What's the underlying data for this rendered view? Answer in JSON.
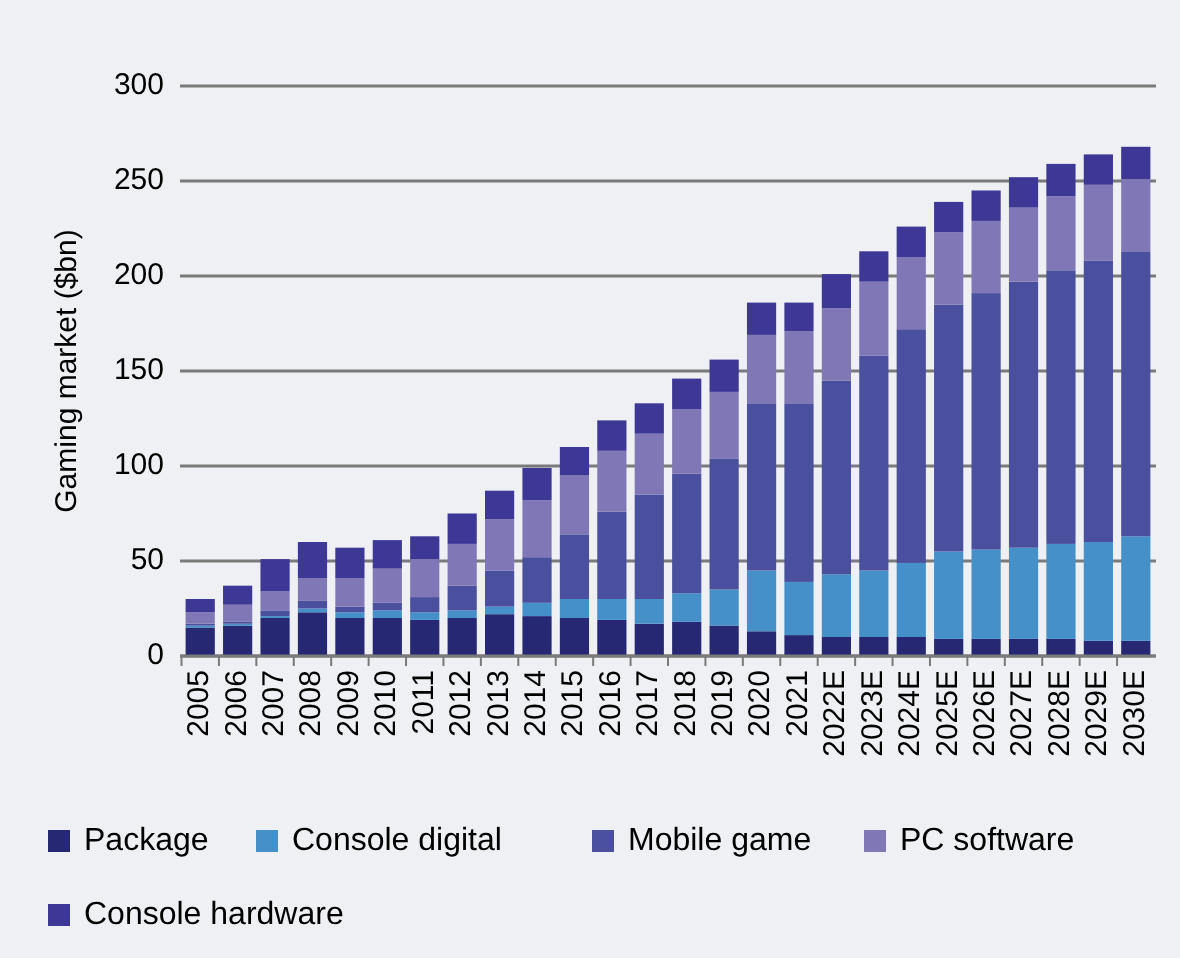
{
  "chart_data": {
    "type": "bar",
    "stacked": true,
    "ylabel": "Gaming market ($bn)",
    "categories": [
      "2005",
      "2006",
      "2007",
      "2008",
      "2009",
      "2010",
      "2011",
      "2012",
      "2013",
      "2014",
      "2015",
      "2016",
      "2017",
      "2018",
      "2019",
      "2020",
      "2021",
      "2022E",
      "2023E",
      "2024E",
      "2025E",
      "2026E",
      "2027E",
      "2028E",
      "2029E",
      "2030E"
    ],
    "series": [
      {
        "name": "Package",
        "color": "#262873",
        "values": [
          15,
          16,
          20,
          23,
          20,
          20,
          19,
          20,
          22,
          21,
          20,
          19,
          17,
          18,
          16,
          13,
          11,
          10,
          10,
          10,
          9,
          9,
          9,
          9,
          8,
          8
        ]
      },
      {
        "name": "Console digital",
        "color": "#4590c8",
        "values": [
          1,
          1,
          1,
          2,
          3,
          4,
          4,
          4,
          4,
          7,
          10,
          11,
          13,
          15,
          19,
          32,
          28,
          33,
          35,
          39,
          46,
          47,
          48,
          50,
          52,
          55
        ]
      },
      {
        "name": "Mobile game",
        "color": "#4a4f9e",
        "values": [
          1,
          1,
          3,
          4,
          3,
          4,
          8,
          13,
          19,
          24,
          34,
          46,
          55,
          63,
          69,
          88,
          94,
          102,
          113,
          123,
          130,
          135,
          140,
          144,
          148,
          150
        ]
      },
      {
        "name": "PC software",
        "color": "#8078b6",
        "values": [
          6,
          9,
          10,
          12,
          15,
          18,
          20,
          22,
          27,
          30,
          31,
          32,
          32,
          34,
          35,
          36,
          38,
          38,
          39,
          38,
          38,
          38,
          39,
          39,
          40,
          38
        ]
      },
      {
        "name": "Console hardware",
        "color": "#3d3796",
        "values": [
          7,
          10,
          17,
          19,
          16,
          15,
          12,
          16,
          15,
          17,
          15,
          16,
          16,
          16,
          17,
          17,
          15,
          18,
          16,
          16,
          16,
          16,
          16,
          17,
          16,
          17
        ]
      }
    ],
    "ylim": [
      0,
      300
    ],
    "yticks": [
      0,
      50,
      100,
      150,
      200,
      250,
      300
    ],
    "grid": "y",
    "legend": "bottom"
  }
}
